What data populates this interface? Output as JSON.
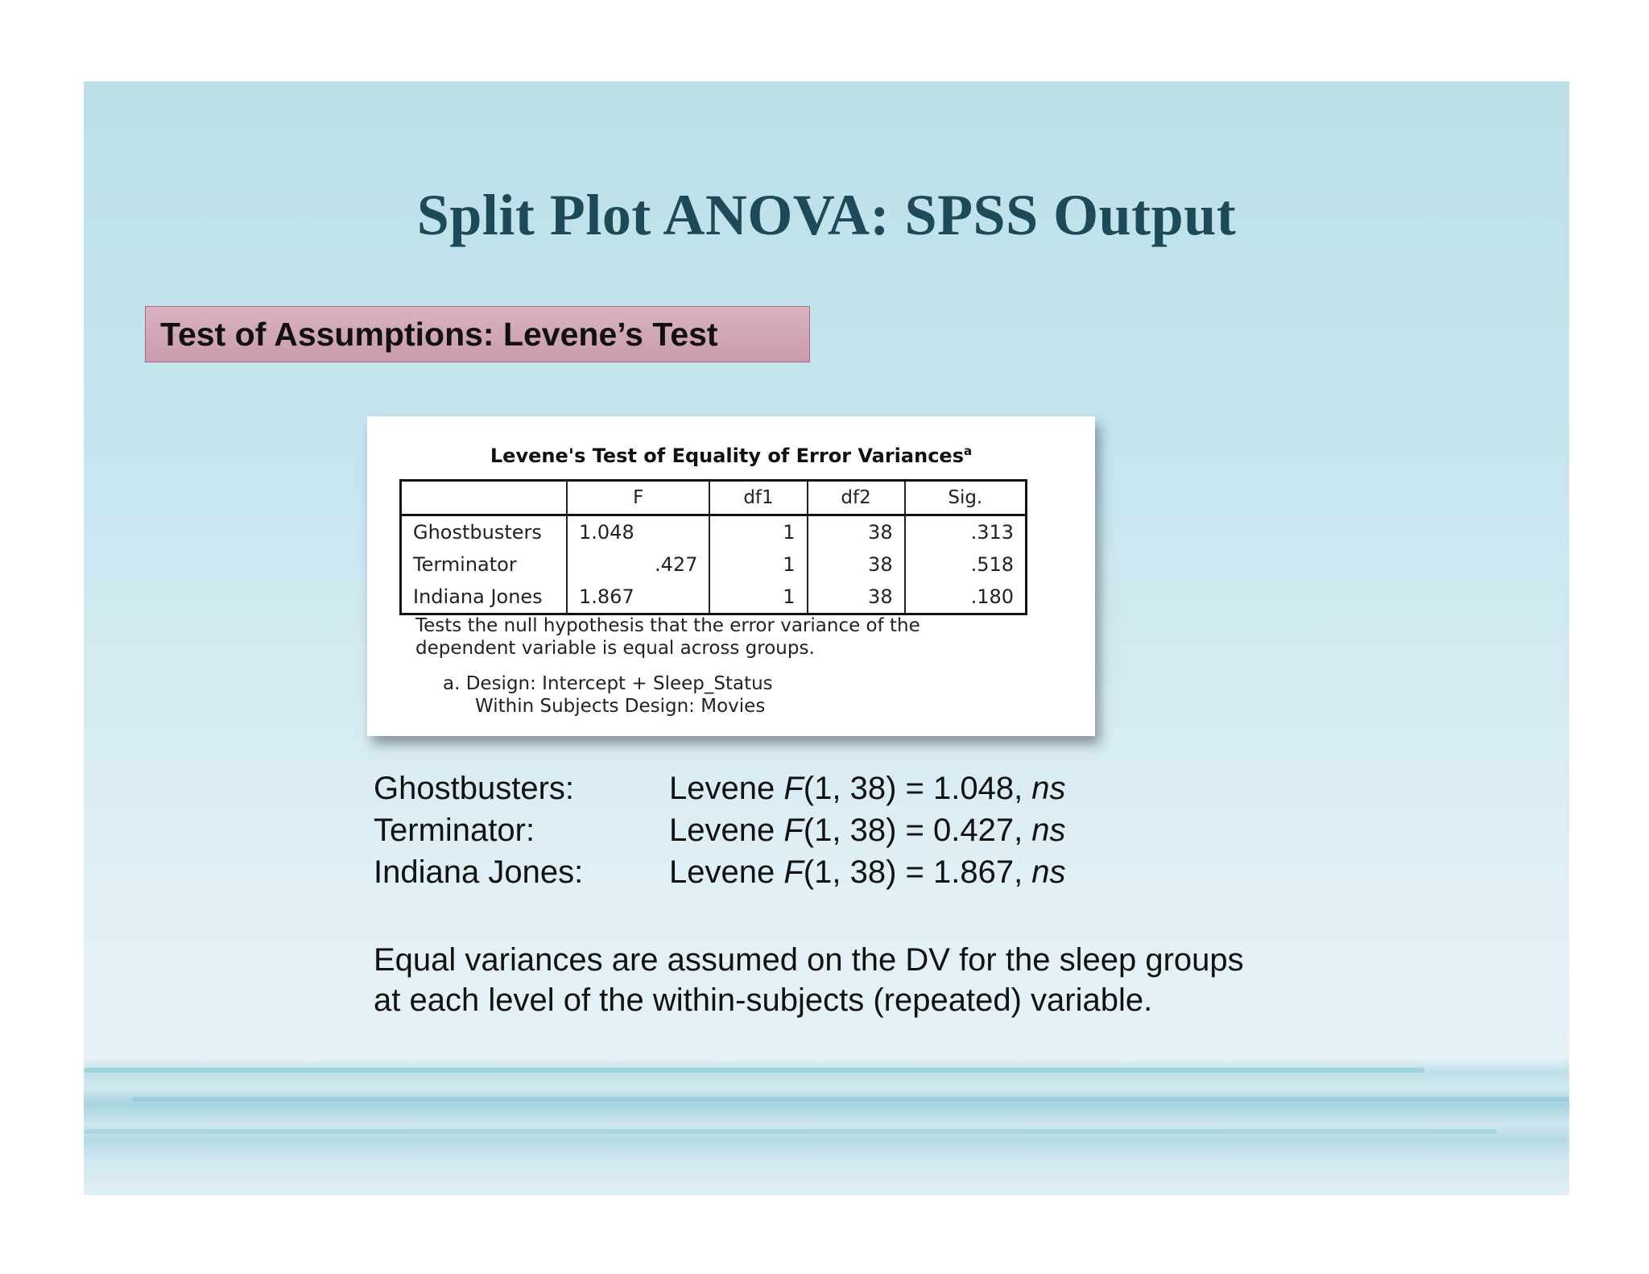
{
  "slide": {
    "title": "Split Plot ANOVA: SPSS Output",
    "section_heading": "Test of Assumptions: Levene’s Test"
  },
  "spss_table": {
    "title": "Levene's Test of Equality of Error Variances",
    "title_footnote_mark": "a",
    "columns": [
      "",
      "F",
      "df1",
      "df2",
      "Sig."
    ],
    "rows": [
      {
        "label": "Ghostbusters",
        "F": "1.048",
        "df1": "1",
        "df2": "38",
        "sig": ".313"
      },
      {
        "label": "Terminator",
        "F": ".427",
        "df1": "1",
        "df2": "38",
        "sig": ".518"
      },
      {
        "label": "Indiana Jones",
        "F": "1.867",
        "df1": "1",
        "df2": "38",
        "sig": ".180"
      }
    ],
    "note_line1": "Tests the null hypothesis that the error variance of the",
    "note_line2": "dependent variable is equal across groups.",
    "footnote_line1": "a. Design: Intercept + Sleep_Status",
    "footnote_line2": "Within Subjects Design: Movies"
  },
  "results": [
    {
      "label": "Ghostbusters:",
      "prefix": "Levene ",
      "stat": "F",
      "rest": "(1, 38) = 1.048, ",
      "sig": "ns"
    },
    {
      "label": "Terminator:",
      "prefix": "Levene ",
      "stat": "F",
      "rest": "(1, 38) = 0.427, ",
      "sig": "ns"
    },
    {
      "label": "Indiana Jones:",
      "prefix": "Levene ",
      "stat": "F",
      "rest": "(1, 38) = 1.867, ",
      "sig": "ns"
    }
  ],
  "summary": {
    "line1": "Equal variances are assumed on the DV for the sleep groups",
    "line2": "at each level of the within-subjects (repeated) variable."
  },
  "colors": {
    "title": "#1d4a58",
    "section_box": "#d0a7b8",
    "section_border": "#a46a86",
    "slide_background": "#c7e6ee"
  }
}
